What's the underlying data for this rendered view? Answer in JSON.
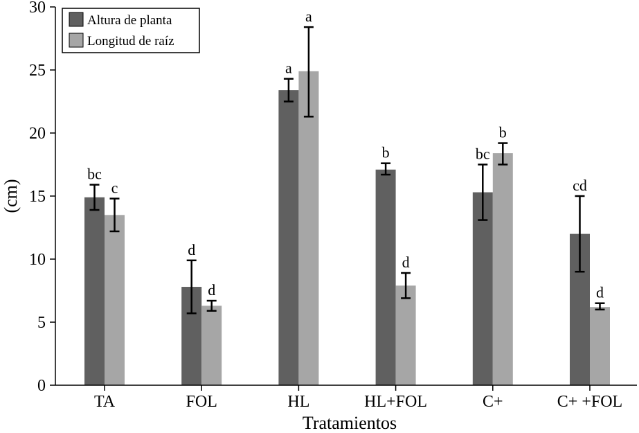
{
  "chart_data": {
    "type": "bar",
    "title": "",
    "xlabel": "Tratamientos",
    "ylabel": "(cm)",
    "ylim": [
      0,
      30
    ],
    "yticks": [
      0,
      5,
      10,
      15,
      20,
      25,
      30
    ],
    "legend_position": "top-left",
    "categories": [
      "TA",
      "FOL",
      "HL",
      "HL+FOL",
      "C+",
      "C+ +FOL"
    ],
    "series": [
      {
        "name": "Altura de planta",
        "color": "#606060",
        "values": [
          14.9,
          7.8,
          23.4,
          17.1,
          15.3,
          12.0
        ],
        "err_low": [
          13.9,
          5.7,
          22.5,
          16.7,
          13.1,
          9.0
        ],
        "err_high": [
          15.9,
          9.9,
          24.3,
          17.6,
          17.5,
          15.0
        ],
        "labels": [
          "bc",
          "d",
          "a",
          "b",
          "bc",
          "cd"
        ]
      },
      {
        "name": "Longitud de raíz",
        "color": "#a6a6a6",
        "values": [
          13.5,
          6.3,
          24.9,
          7.9,
          18.4,
          6.2
        ],
        "err_low": [
          12.2,
          5.9,
          21.3,
          6.9,
          17.5,
          6.0
        ],
        "err_high": [
          14.8,
          6.7,
          28.4,
          8.9,
          19.2,
          6.5
        ],
        "labels": [
          "c",
          "d",
          "a",
          "d",
          "b",
          "d"
        ]
      }
    ]
  }
}
